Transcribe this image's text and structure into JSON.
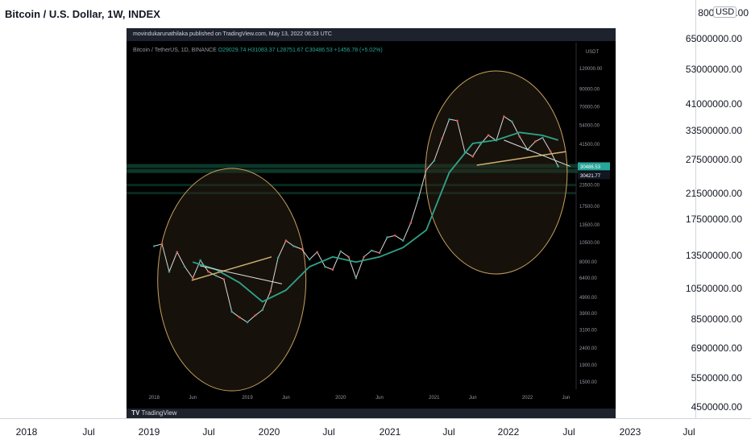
{
  "outer": {
    "title": "Bitcoin / U.S. Dollar, 1W, INDEX",
    "currency_badge": "USD",
    "top_value_partial": "800",
    "top_value_suffix": ".00",
    "y_ticks": [
      "65000000.00",
      "53000000.00",
      "41000000.00",
      "33500000.00",
      "27500000.00",
      "21500000.00",
      "17500000.00",
      "13500000.00",
      "10500000.00",
      "8500000.00",
      "6900000.00",
      "5500000.00",
      "4500000.00"
    ],
    "x_ticks": [
      "2018",
      "Jul",
      "2019",
      "Jul",
      "2020",
      "Jul",
      "2021",
      "Jul",
      "2022",
      "Jul",
      "2023",
      "Jul"
    ]
  },
  "inner": {
    "published": "movindukarunathilaka published on TradingView.com, May 13, 2022 06:33 UTC",
    "legend_symbol": "Bitcoin / TetherUS, 1D, BINANCE",
    "legend_ohlc": "O29029.74 H31083.37 L28751.67 C30486.53 +1456.78 (+5.02%)",
    "price_axis_header": "USDT",
    "price_ticks": [
      "120000.00",
      "90000.00",
      "70000.00",
      "54000.00",
      "41500.00",
      "23500.00",
      "17500.00",
      "13500.00",
      "10500.00",
      "8000.00",
      "6400.00",
      "4900.00",
      "3900.00",
      "3100.00",
      "2400.00",
      "1900.00",
      "1500.00"
    ],
    "price_badge_current": "30486.53",
    "price_badge_secondary": "30421.77",
    "x_ticks": [
      "2018",
      "Jun",
      "2019",
      "Jun",
      "2020",
      "Jun",
      "2021",
      "Jun",
      "2022",
      "Jun"
    ],
    "branding": "TradingView",
    "colors": {
      "price_line": "#d9d9d9",
      "moving_average": "#2fa38a",
      "circles": "#c8a060",
      "trendline": "#d0b070",
      "support_band": "#1f7a5a",
      "current_badge": "#26a69a"
    }
  },
  "chart_data": {
    "type": "line",
    "title": "Bitcoin / TetherUS, 1D, BINANCE",
    "y_scale": "log",
    "ylim": [
      1400,
      150000
    ],
    "series": [
      {
        "x": [
          "2018-01",
          "2018-02",
          "2018-03",
          "2018-04",
          "2018-05",
          "2018-06",
          "2018-07",
          "2018-08",
          "2018-09",
          "2018-10",
          "2018-11",
          "2018-12",
          "2019-01",
          "2019-02",
          "2019-03",
          "2019-04",
          "2019-05",
          "2019-06",
          "2019-07",
          "2019-08",
          "2019-09",
          "2019-10",
          "2019-11",
          "2019-12",
          "2020-01",
          "2020-02",
          "2020-03",
          "2020-04",
          "2020-05",
          "2020-06",
          "2020-07",
          "2020-08",
          "2020-09",
          "2020-10",
          "2020-11",
          "2020-12",
          "2021-01",
          "2021-02",
          "2021-03",
          "2021-04",
          "2021-05",
          "2021-06",
          "2021-07",
          "2021-08",
          "2021-09",
          "2021-10",
          "2021-11",
          "2021-12",
          "2022-01",
          "2022-02",
          "2022-03",
          "2022-04",
          "2022-05"
        ],
        "y": [
          10000,
          10300,
          7000,
          9200,
          7500,
          6400,
          8200,
          7000,
          6600,
          6300,
          4000,
          3700,
          3450,
          3800,
          4100,
          5300,
          8500,
          10800,
          10000,
          9600,
          8300,
          9200,
          7500,
          7200,
          9300,
          8600,
          6400,
          8600,
          9400,
          9100,
          11300,
          11600,
          10800,
          13800,
          19600,
          29000,
          33000,
          45000,
          58900,
          57700,
          37300,
          35000,
          41500,
          47100,
          43800,
          61300,
          57000,
          46300,
          38500,
          43200,
          45500,
          37600,
          30486
        ]
      },
      {
        "x": [
          "2018-06",
          "2018-09",
          "2018-12",
          "2019-03",
          "2019-06",
          "2019-09",
          "2019-12",
          "2020-03",
          "2020-06",
          "2020-09",
          "2020-12",
          "2021-03",
          "2021-06",
          "2021-09",
          "2021-12",
          "2022-03",
          "2022-05"
        ],
        "y": [
          8000,
          7200,
          6000,
          4600,
          5400,
          7500,
          8600,
          8000,
          8600,
          9800,
          12500,
          28000,
          42000,
          44000,
          49000,
          47000,
          44000
        ]
      }
    ],
    "horizontal_levels": [
      30486.53,
      30421.77
    ],
    "legend": "none",
    "grid": false
  }
}
